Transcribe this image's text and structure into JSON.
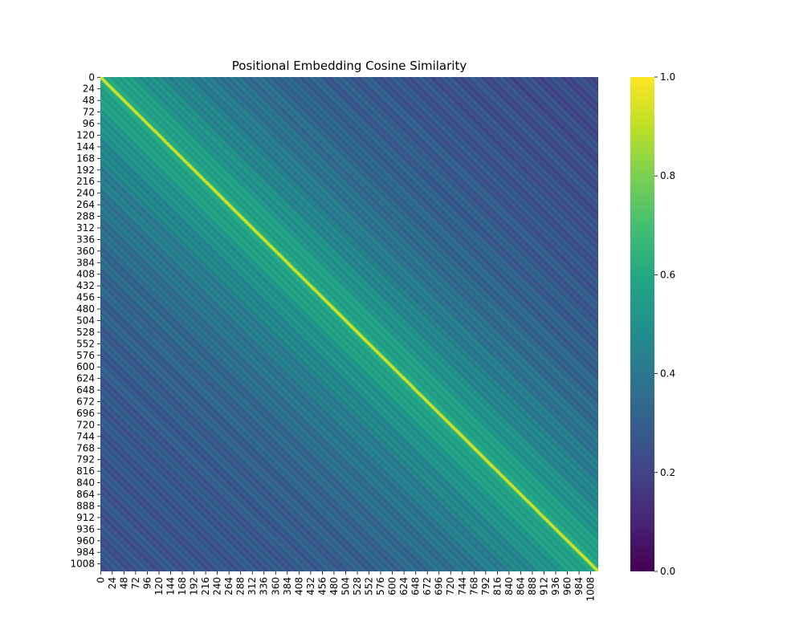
{
  "chart_data": {
    "type": "heatmap",
    "title": "Positional Embedding Cosine Similarity",
    "matrix_size": 1024,
    "x_tick_labels": [
      "0",
      "24",
      "48",
      "72",
      "96",
      "120",
      "144",
      "168",
      "192",
      "216",
      "240",
      "264",
      "288",
      "312",
      "336",
      "360",
      "384",
      "408",
      "432",
      "456",
      "480",
      "504",
      "528",
      "552",
      "576",
      "600",
      "624",
      "648",
      "672",
      "696",
      "720",
      "744",
      "768",
      "792",
      "816",
      "840",
      "864",
      "888",
      "912",
      "936",
      "960",
      "984",
      "1008"
    ],
    "y_tick_labels": [
      "0",
      "24",
      "48",
      "72",
      "96",
      "120",
      "144",
      "168",
      "192",
      "216",
      "240",
      "264",
      "288",
      "312",
      "336",
      "360",
      "384",
      "408",
      "432",
      "456",
      "480",
      "504",
      "528",
      "552",
      "576",
      "600",
      "624",
      "648",
      "672",
      "696",
      "720",
      "744",
      "768",
      "792",
      "816",
      "840",
      "864",
      "888",
      "912",
      "936",
      "960",
      "984",
      "1008"
    ],
    "tick_step": 24,
    "colorbar": {
      "colormap": "viridis",
      "range": [
        0.0,
        1.0
      ],
      "ticks": [
        0.0,
        0.2,
        0.4,
        0.6,
        0.8,
        1.0
      ],
      "tick_labels": [
        "0.0",
        "0.2",
        "0.4",
        "0.6",
        "0.8",
        "1.0"
      ]
    },
    "pattern": {
      "diagonal_value": 1.0,
      "near_diagonal_value": 0.6,
      "mid_distance_value": 0.4,
      "far_distance_value": 0.25,
      "min_value": 0.1
    }
  }
}
